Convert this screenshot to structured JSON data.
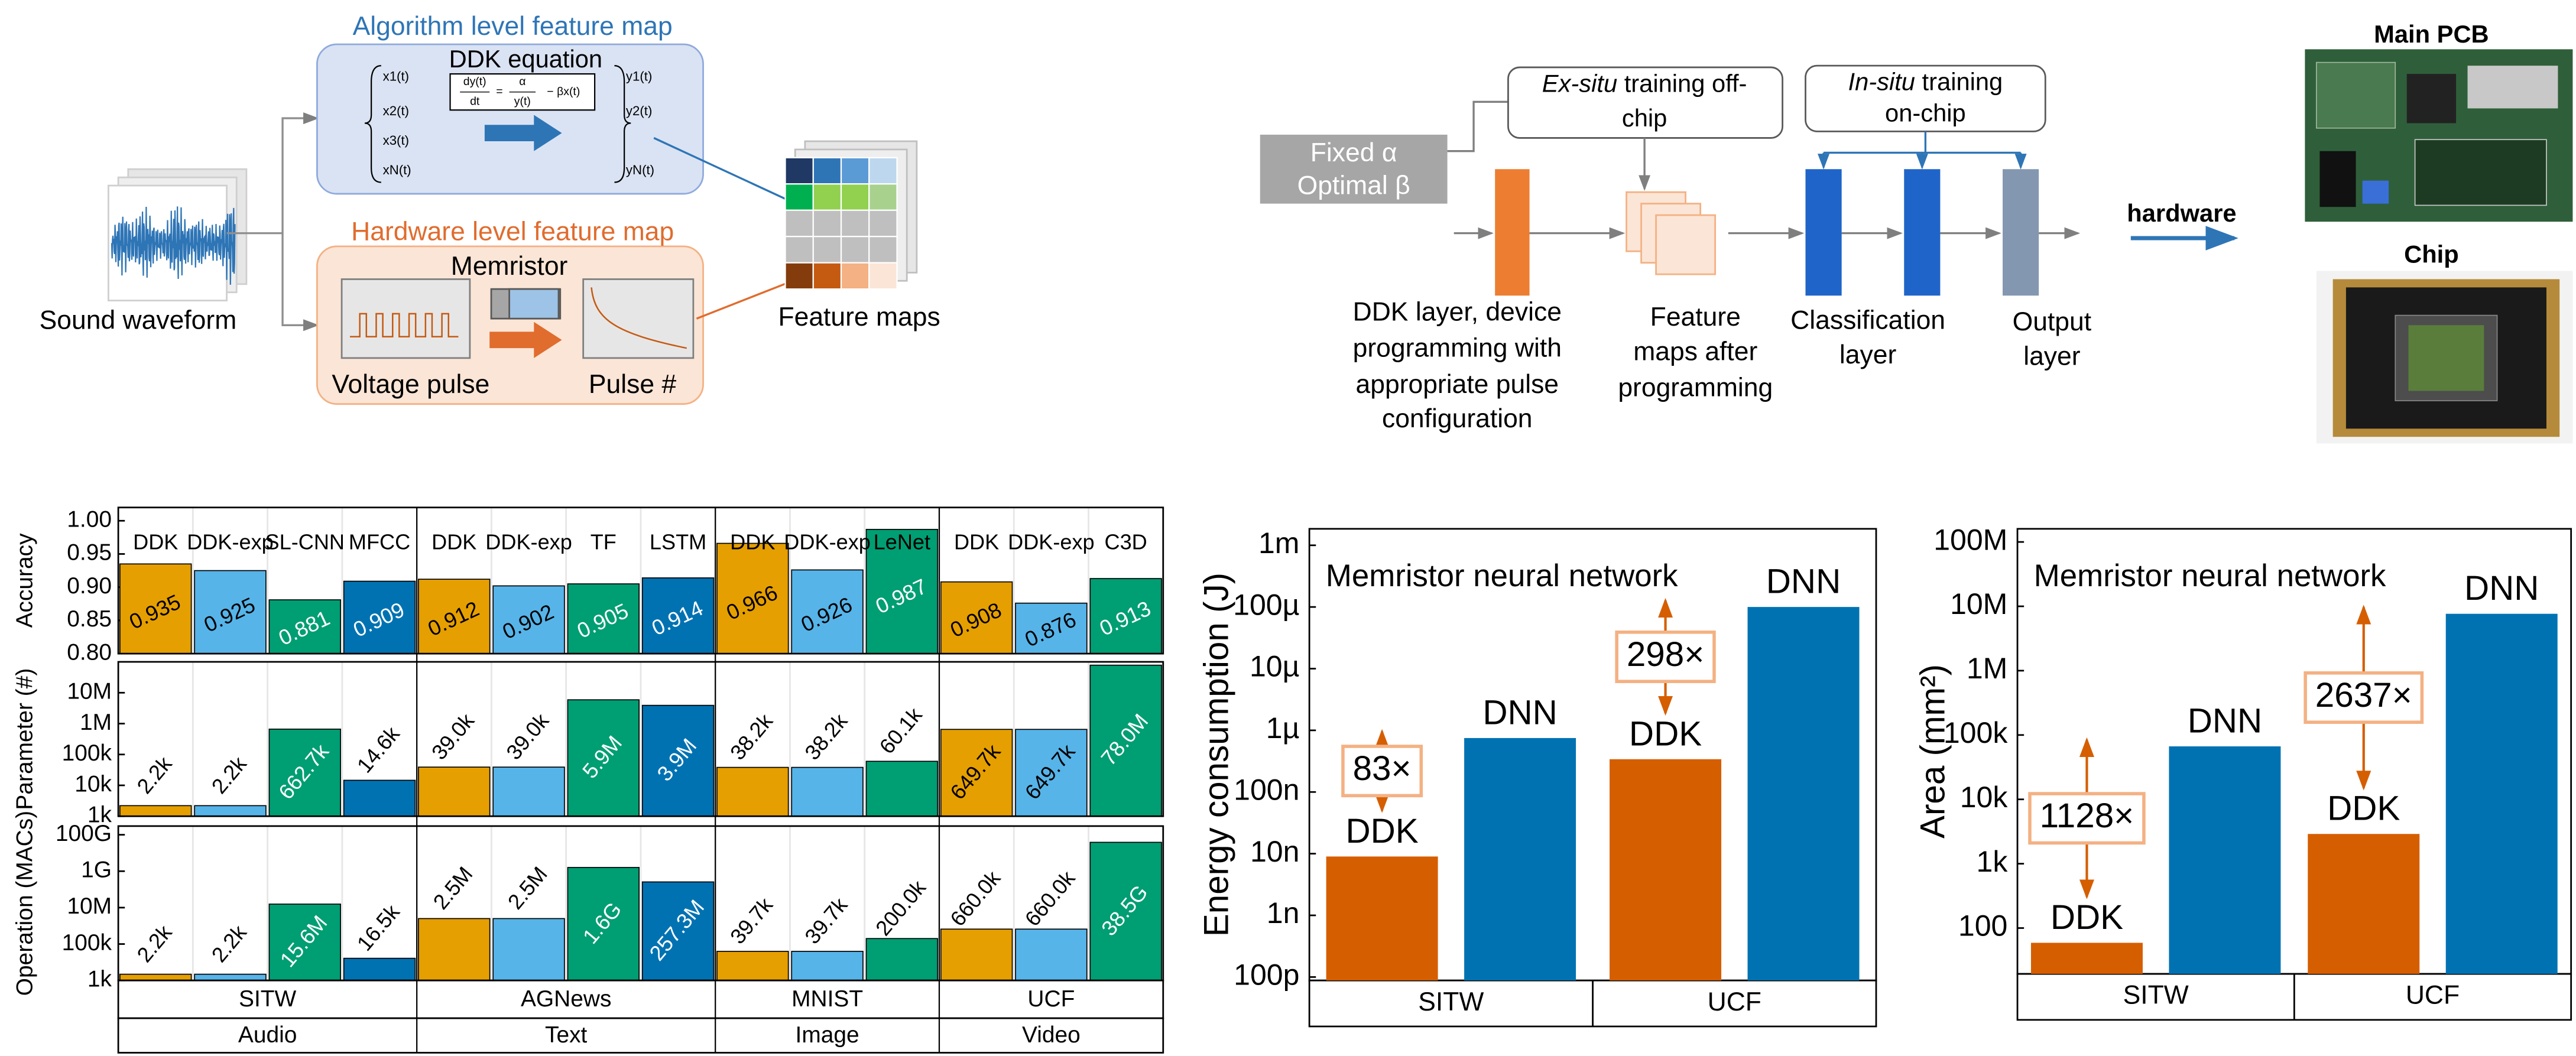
{
  "input_label": "Sound waveform",
  "output_label": "Feature maps",
  "algorithm_panel": {
    "title": "Algorithm level feature map",
    "equation_title": "DDK equation",
    "equation": {
      "lhs_numerator": "dy(t)",
      "lhs_denominator": "dt",
      "equals": "=",
      "rhs_numerator": "α",
      "rhs_denominator": "y(t)",
      "rhs_rest": "− βx(t)"
    },
    "inputs": [
      "x1(t)",
      "x2(t)",
      "x3(t)",
      "xN(t)"
    ],
    "outputs": [
      "y1(t)",
      "y2(t)",
      "yN(t)"
    ]
  },
  "hardware_panel": {
    "title": "Hardware level feature map",
    "device": "Memristor",
    "input_label": "Voltage pulse",
    "output_label": "Pulse #"
  },
  "training_pipeline": {
    "parameters": [
      "Fixed α",
      "Optimal β"
    ],
    "ex_situ": {
      "emphasis": "Ex-situ",
      "lines": [
        "training off-",
        "chip"
      ]
    },
    "in_situ": {
      "emphasis": "In-situ",
      "lines": [
        "training",
        "on-chip"
      ]
    },
    "ddk_layer": [
      "DDK layer, device",
      "programming with",
      "appropriate pulse",
      "configuration"
    ],
    "feature_maps": [
      "Feature",
      "maps after",
      "programming"
    ],
    "classification_layer": [
      "Classification",
      "layer"
    ],
    "output_layer": [
      "Output",
      "layer"
    ],
    "arrow_label": "hardware",
    "photos": [
      "Main PCB",
      "Chip"
    ]
  },
  "chart_data": [
    {
      "type": "bar",
      "ylabel": "Accuracy",
      "groups": [
        {
          "name": "SITW",
          "domain": "Audio",
          "categories": [
            "DDK",
            "DDK-exp",
            "SL-CNN",
            "MFCC"
          ]
        },
        {
          "name": "AGNews",
          "domain": "Text",
          "categories": [
            "DDK",
            "DDK-exp",
            "TF",
            "LSTM"
          ]
        },
        {
          "name": "MNIST",
          "domain": "Image",
          "categories": [
            "DDK",
            "DDK-exp",
            "LeNet"
          ]
        },
        {
          "name": "UCF",
          "domain": "Video",
          "categories": [
            "DDK",
            "DDK-exp",
            "C3D"
          ]
        }
      ],
      "values": [
        0.935,
        0.925,
        0.881,
        0.909,
        0.912,
        0.902,
        0.905,
        0.914,
        0.966,
        0.926,
        0.987,
        0.908,
        0.876,
        0.913
      ],
      "colors": [
        "#e69f00",
        "#56b4e9",
        "#009e73",
        "#0072b2",
        "#e69f00",
        "#56b4e9",
        "#009e73",
        "#0072b2",
        "#e69f00",
        "#56b4e9",
        "#009e73",
        "#e69f00",
        "#56b4e9",
        "#009e73"
      ],
      "ylim": [
        0.8,
        1.02
      ],
      "yticks": [
        {
          "value": 0.8,
          "label": "0.80"
        },
        0.85,
        {
          "value": 0.9,
          "label": "0.90"
        },
        0.95,
        {
          "value": 1,
          "label": "1.00"
        }
      ]
    },
    {
      "type": "bar",
      "ylabel": "Parameter (#)",
      "log": true,
      "values": [
        2200,
        2200,
        662700,
        14600,
        39000,
        39000,
        5900000,
        3900000,
        38200,
        38200,
        60100,
        649700,
        649700,
        78000000
      ],
      "value_labels": [
        "2.2k",
        "2.2k",
        "662.7k",
        "14.6k",
        "39.0k",
        "39.0k",
        "5.9M",
        "3.9M",
        "38.2k",
        "38.2k",
        "60.1k",
        "649.7k",
        "649.7k",
        "78.0M"
      ],
      "colors": [
        "#e69f00",
        "#56b4e9",
        "#009e73",
        "#0072b2",
        "#e69f00",
        "#56b4e9",
        "#009e73",
        "#0072b2",
        "#e69f00",
        "#56b4e9",
        "#009e73",
        "#e69f00",
        "#56b4e9",
        "#009e73"
      ],
      "ylim": [
        1000,
        100000000
      ],
      "yticks": [
        {
          "value": 1000,
          "label": "1k"
        },
        {
          "value": 10000,
          "label": "10k"
        },
        {
          "value": 100000,
          "label": "100k"
        },
        {
          "value": 1000000,
          "label": "1M"
        },
        {
          "value": 10000000,
          "label": "10M"
        }
      ]
    },
    {
      "type": "bar",
      "ylabel": "Operation (MACs)",
      "log": true,
      "values": [
        2200,
        2200,
        15600000,
        16500,
        2500000,
        2500000,
        1600000000,
        257300000,
        39700,
        39700,
        200000,
        660000,
        660000,
        38500000000
      ],
      "value_labels": [
        "2.2k",
        "2.2k",
        "15.6M",
        "16.5k",
        "2.5M",
        "2.5M",
        "1.6G",
        "257.3M",
        "39.7k",
        "39.7k",
        "200.0k",
        "660.0k",
        "660.0k",
        "38.5G"
      ],
      "colors": [
        "#e69f00",
        "#56b4e9",
        "#009e73",
        "#0072b2",
        "#e69f00",
        "#56b4e9",
        "#009e73",
        "#0072b2",
        "#e69f00",
        "#56b4e9",
        "#009e73",
        "#e69f00",
        "#56b4e9",
        "#009e73"
      ],
      "ylim": [
        1000,
        300000000000
      ],
      "yticks": [
        {
          "value": 1000,
          "label": "1k"
        },
        {
          "value": 100000,
          "label": "100k"
        },
        {
          "value": 10000000,
          "label": "10M"
        },
        {
          "value": 1000000000,
          "label": "1G"
        },
        {
          "value": 100000000000,
          "label": "100G"
        }
      ]
    },
    {
      "type": "grouped-bar",
      "title": "Memristor neural network",
      "ylabel": "Energy consumption (J)",
      "log": true,
      "categories": [
        "SITW",
        "UCF"
      ],
      "series": [
        {
          "name": "DDK",
          "color": "#d55e00",
          "values": [
            9e-09,
            3.4e-07
          ]
        },
        {
          "name": "DNN",
          "color": "#0072b2",
          "values": [
            7.5e-07,
            0.0001
          ]
        }
      ],
      "annotations": [
        "83×",
        "298×"
      ],
      "ylim": [
        8.8e-11,
        0.00185
      ],
      "yticks": [
        {
          "value": 1e-10,
          "label": "100p"
        },
        {
          "value": 1e-09,
          "label": "1n"
        },
        {
          "value": 1e-08,
          "label": "10n"
        },
        {
          "value": 1e-07,
          "label": "100n"
        },
        {
          "value": 1e-06,
          "label": "1µ"
        },
        {
          "value": 1e-05,
          "label": "10µ"
        },
        {
          "value": 0.0001,
          "label": "100µ"
        },
        {
          "value": 0.001,
          "label": "1m"
        }
      ]
    },
    {
      "type": "grouped-bar",
      "title": "Memristor neural network",
      "ylabel": "Area (mm²)",
      "log": true,
      "categories": [
        "SITW",
        "UCF"
      ],
      "series": [
        {
          "name": "DDK",
          "color": "#d55e00",
          "values": [
            59,
            2900
          ]
        },
        {
          "name": "DNN",
          "color": "#0072b2",
          "values": [
            66600,
            7650000
          ]
        }
      ],
      "annotations": [
        "1128×",
        "2637×"
      ],
      "ylim": [
        19.4,
        160000000
      ],
      "yticks": [
        100,
        {
          "value": 1000,
          "label": "1k"
        },
        {
          "value": 10000,
          "label": "10k"
        },
        {
          "value": 100000,
          "label": "100k"
        },
        {
          "value": 1000000,
          "label": "1M"
        },
        {
          "value": 10000000,
          "label": "10M"
        },
        {
          "value": 100000000,
          "label": "100M"
        }
      ]
    }
  ]
}
